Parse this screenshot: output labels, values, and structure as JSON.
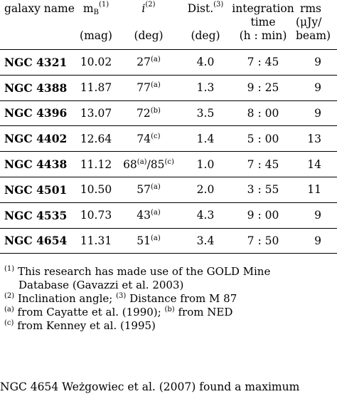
{
  "table": {
    "headers": {
      "galaxy_name": "galaxy name",
      "mag_base": "m",
      "mag_sub": "B",
      "mag_sup": "(1)",
      "incl_base": "i",
      "incl_sup": "(2)",
      "dist_base": "Dist.",
      "dist_sup": "(3)",
      "integration_line1": "integration",
      "integration_line2": "time",
      "rms_line1": "rms",
      "rms_line2": "(μJy/",
      "rms_line3": "beam)",
      "mag_unit": "(mag)",
      "incl_unit": "(deg)",
      "dist_unit": "(deg)",
      "integration_unit": "(h : min)"
    },
    "rows": [
      {
        "name": "NGC 4321",
        "mag": "10.02",
        "incl": "27",
        "incl_ref": "(a)",
        "dist": "4.0",
        "time": "7 : 45",
        "rms": "9"
      },
      {
        "name": "NGC 4388",
        "mag": "11.87",
        "incl": "77",
        "incl_ref": "(a)",
        "dist": "1.3",
        "time": "9 : 25",
        "rms": "9"
      },
      {
        "name": "NGC 4396",
        "mag": "13.07",
        "incl": "72",
        "incl_ref": "(b)",
        "dist": "3.5",
        "time": "8 : 00",
        "rms": "9"
      },
      {
        "name": "NGC 4402",
        "mag": "12.64",
        "incl": "74",
        "incl_ref": "(c)",
        "dist": "1.4",
        "time": "5 : 00",
        "rms": "13"
      },
      {
        "name": "NGC 4438",
        "mag": "11.12",
        "incl": "68",
        "incl_ref": "(a)",
        "incl2": "/85",
        "incl2_ref": "(c)",
        "dist": "1.0",
        "time": "7 : 45",
        "rms": "14"
      },
      {
        "name": "NGC 4501",
        "mag": "10.50",
        "incl": "57",
        "incl_ref": "(a)",
        "dist": "2.0",
        "time": "3 : 55",
        "rms": "11"
      },
      {
        "name": "NGC 4535",
        "mag": "10.73",
        "incl": "43",
        "incl_ref": "(a)",
        "dist": "4.3",
        "time": "9 : 00",
        "rms": "9"
      },
      {
        "name": "NGC 4654",
        "mag": "11.31",
        "incl": "51",
        "incl_ref": "(a)",
        "dist": "3.4",
        "time": "7 : 50",
        "rms": "9"
      }
    ]
  },
  "notes": [
    {
      "mark": "(1)",
      "text": "This research has made use of the GOLD Mine",
      "cont": "Database (Gavazzi et al. 2003)"
    },
    {
      "mark": "(2)",
      "text": "Inclination angle;",
      "mark2": "(3)",
      "text2": "Distance from M 87"
    },
    {
      "mark": "(a)",
      "text": "from Cayatte et al. (1990);",
      "mark2": "(b)",
      "text2": "from NED"
    },
    {
      "mark": "(c)",
      "text": "from Kenney et al. (1995)"
    }
  ],
  "body_text": "NGC 4654 Weżgowiec et al. (2007) found a maximum"
}
